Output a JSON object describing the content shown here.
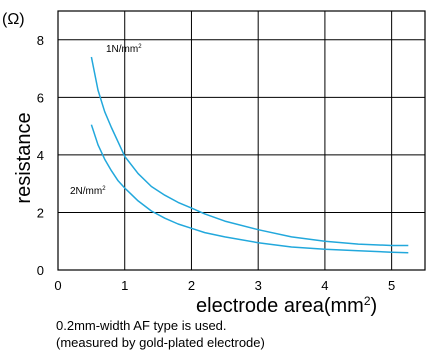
{
  "chart_data": {
    "type": "line",
    "unit_label": "(Ω)",
    "ylabel": "resistance",
    "xlabel_main": "electrode area(mm",
    "xlabel_sup": "2",
    "xlabel_close": ")",
    "xlim": [
      0,
      5.5
    ],
    "ylim": [
      0,
      9
    ],
    "x_ticks": [
      0,
      1,
      2,
      3,
      4,
      5
    ],
    "y_ticks": [
      0,
      2,
      4,
      6,
      8
    ],
    "grid": true,
    "line_color": "#22a8dc",
    "series": [
      {
        "name": "1N/mm²",
        "label_main": "1N/mm",
        "label_sup": "2",
        "x": [
          0.5,
          0.6,
          0.7,
          0.8,
          0.9,
          1.0,
          1.2,
          1.4,
          1.6,
          1.8,
          2.0,
          2.2,
          2.5,
          3.0,
          3.5,
          4.0,
          4.5,
          5.0,
          5.25
        ],
        "y": [
          7.4,
          6.25,
          5.5,
          4.95,
          4.45,
          3.95,
          3.35,
          2.9,
          2.6,
          2.35,
          2.15,
          1.95,
          1.7,
          1.4,
          1.15,
          1.0,
          0.9,
          0.85,
          0.85
        ]
      },
      {
        "name": "2N/mm²",
        "label_main": "2N/mm",
        "label_sup": "2",
        "x": [
          0.5,
          0.6,
          0.7,
          0.8,
          0.9,
          1.0,
          1.2,
          1.4,
          1.6,
          1.8,
          2.0,
          2.2,
          2.5,
          3.0,
          3.5,
          4.0,
          4.5,
          5.0,
          5.25
        ],
        "y": [
          5.05,
          4.35,
          3.85,
          3.45,
          3.1,
          2.85,
          2.4,
          2.05,
          1.8,
          1.6,
          1.45,
          1.3,
          1.15,
          0.95,
          0.8,
          0.72,
          0.67,
          0.62,
          0.6
        ]
      }
    ]
  },
  "notes": {
    "line1": "0.2mm-width AF type is used.",
    "line2": "(measured by gold-plated electrode)"
  }
}
